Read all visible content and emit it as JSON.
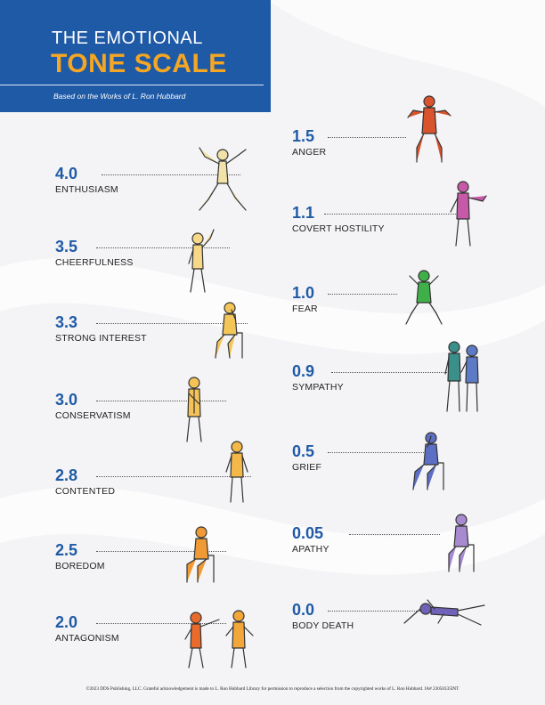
{
  "header": {
    "title_line1": "THE EMOTIONAL",
    "title_line2": "TONE SCALE",
    "subtitle": "Based on the Works of L. Ron Hubbard"
  },
  "left_scale": [
    {
      "level": "4.0",
      "label": "ENTHUSIASM",
      "figure_color": "#f0e2a8"
    },
    {
      "level": "3.5",
      "label": "CHEERFULNESS",
      "figure_color": "#f6d886"
    },
    {
      "level": "3.3",
      "label": "STRONG INTEREST",
      "figure_color": "#f4c65a"
    },
    {
      "level": "3.0",
      "label": "CONSERVATISM",
      "figure_color": "#f4c257"
    },
    {
      "level": "2.8",
      "label": "CONTENTED",
      "figure_color": "#f3b847"
    },
    {
      "level": "2.5",
      "label": "BOREDOM",
      "figure_color": "#ef9a34"
    },
    {
      "level": "2.0",
      "label": "ANTAGONISM",
      "figure_color": "#ea6a2c"
    }
  ],
  "right_scale": [
    {
      "level": "1.5",
      "label": "ANGER",
      "figure_color": "#d9532c"
    },
    {
      "level": "1.1",
      "label": "COVERT HOSTILITY",
      "figure_color": "#c75aa8"
    },
    {
      "level": "1.0",
      "label": "FEAR",
      "figure_color": "#3fb049"
    },
    {
      "level": "0.9",
      "label": "SYMPATHY",
      "figure_color": "#3a8f8a"
    },
    {
      "level": "0.5",
      "label": "GRIEF",
      "figure_color": "#5d6fc4"
    },
    {
      "level": "0.05",
      "label": "APATHY",
      "figure_color": "#a88ad0"
    },
    {
      "level": "0.0",
      "label": "BODY DEATH",
      "figure_color": "#6f62b8"
    }
  ],
  "footer": "©2023 DDS Publishing, LLC. Grateful acknowledgement is made to L. Ron Hubbard Library for permission to reproduce a selection from the copyrighted works of L. Ron Hubbard. IA# 23050335INT"
}
